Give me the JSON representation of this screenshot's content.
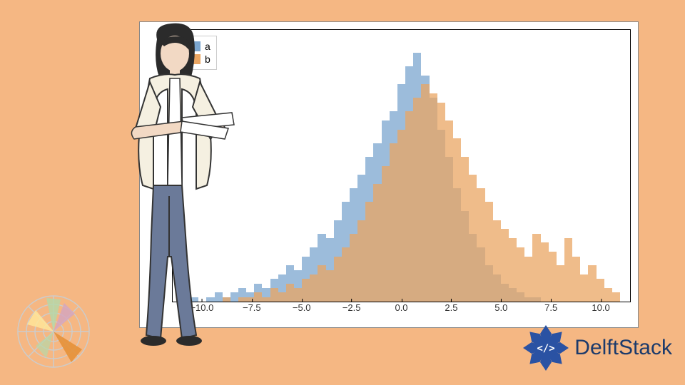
{
  "background_color": "#f5b783",
  "chart": {
    "type": "histogram",
    "plot_background": "#ffffff",
    "border_color": "#000000",
    "xlim": [
      -11.5,
      11.5
    ],
    "x_ticks": [
      -10.0,
      -7.5,
      -5.0,
      -2.5,
      0.0,
      2.5,
      5.0,
      7.5,
      10.0
    ],
    "x_tick_labels": [
      "−10.0",
      "−7.5",
      "−5.0",
      "−2.5",
      "0.0",
      "2.5",
      "5.0",
      "7.5",
      "10.0"
    ],
    "tick_fontsize": 13,
    "ylim": [
      0,
      60
    ],
    "legend": {
      "position": "upper-left",
      "items": [
        {
          "label": "a",
          "color": "#7ba6cf"
        },
        {
          "label": "b",
          "color": "#eaa663"
        }
      ],
      "fontsize": 14,
      "border_color": "#cccccc"
    },
    "series": [
      {
        "name": "a",
        "color": "#7ba6cf",
        "opacity": 0.75,
        "bin_edges_start": -11.0,
        "bin_width": 0.4,
        "counts": [
          0,
          1,
          0,
          1,
          2,
          1,
          2,
          3,
          2,
          4,
          3,
          5,
          6,
          8,
          7,
          10,
          12,
          15,
          14,
          18,
          22,
          25,
          28,
          32,
          35,
          40,
          42,
          48,
          52,
          55,
          50,
          45,
          38,
          32,
          25,
          20,
          15,
          12,
          8,
          6,
          4,
          3,
          2,
          1,
          1,
          0,
          0,
          0,
          0,
          0,
          0,
          0,
          0,
          0,
          0
        ]
      },
      {
        "name": "b",
        "color": "#eaa663",
        "opacity": 0.75,
        "bin_edges_start": -11.0,
        "bin_width": 0.4,
        "counts": [
          0,
          0,
          0,
          0,
          0,
          1,
          0,
          1,
          1,
          2,
          1,
          3,
          2,
          4,
          3,
          5,
          6,
          8,
          7,
          10,
          12,
          15,
          18,
          22,
          26,
          30,
          35,
          38,
          42,
          45,
          48,
          46,
          44,
          40,
          36,
          32,
          28,
          25,
          22,
          18,
          16,
          14,
          12,
          10,
          15,
          13,
          11,
          8,
          14,
          10,
          6,
          8,
          5,
          3,
          2
        ]
      }
    ]
  },
  "brand": {
    "name": "DelftStack",
    "text_color": "#1b3a6b",
    "badge_color": "#2a52a3",
    "badge_accent": "#ffffff",
    "fontsize": 30
  },
  "polar_icon": {
    "ring_color": "#cccccc",
    "wedges": [
      {
        "color": "#e69138"
      },
      {
        "color": "#b6d7a8"
      },
      {
        "color": "#d5a6bd"
      },
      {
        "color": "#ffe599"
      }
    ]
  },
  "illustration": {
    "description": "woman-holding-papers",
    "hair_color": "#2b2b2b",
    "jacket_color": "#f5f0e1",
    "pants_color": "#6b7a99",
    "skin_color": "#f2d9c4"
  }
}
